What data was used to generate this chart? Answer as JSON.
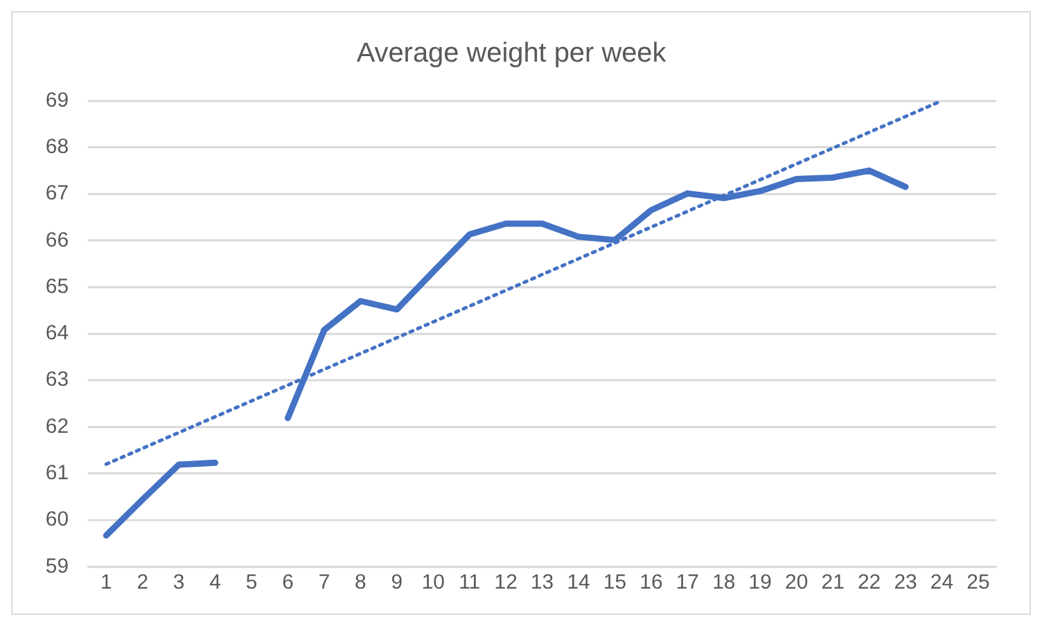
{
  "chart_data": {
    "type": "line",
    "title": "Average weight per week",
    "x": [
      1,
      2,
      3,
      4,
      5,
      6,
      7,
      8,
      9,
      10,
      11,
      12,
      13,
      14,
      15,
      16,
      17,
      18,
      19,
      20,
      21,
      22,
      23
    ],
    "xlim": [
      0.5,
      25.5
    ],
    "xticks": [
      1,
      2,
      3,
      4,
      5,
      6,
      7,
      8,
      9,
      10,
      11,
      12,
      13,
      14,
      15,
      16,
      17,
      18,
      19,
      20,
      21,
      22,
      23,
      24,
      25
    ],
    "ylim": [
      59,
      69
    ],
    "yticks": [
      59,
      60,
      61,
      62,
      63,
      64,
      65,
      66,
      67,
      68,
      69
    ],
    "grid": "y",
    "legend": false,
    "marker": "none",
    "series": [
      {
        "color": "#4472c4",
        "line_style": "solid",
        "values": [
          59.67,
          60.44,
          61.19,
          61.23,
          null,
          62.19,
          64.08,
          64.7,
          64.52,
          65.33,
          66.13,
          66.36,
          66.36,
          66.08,
          66.01,
          66.65,
          67.01,
          66.91,
          67.06,
          67.32,
          67.35,
          67.5,
          67.15
        ]
      },
      {
        "type": "line",
        "color": "#4472c4",
        "line_style": "dotted",
        "x": [
          1,
          24
        ],
        "values": [
          61.2,
          69.0
        ]
      }
    ]
  }
}
